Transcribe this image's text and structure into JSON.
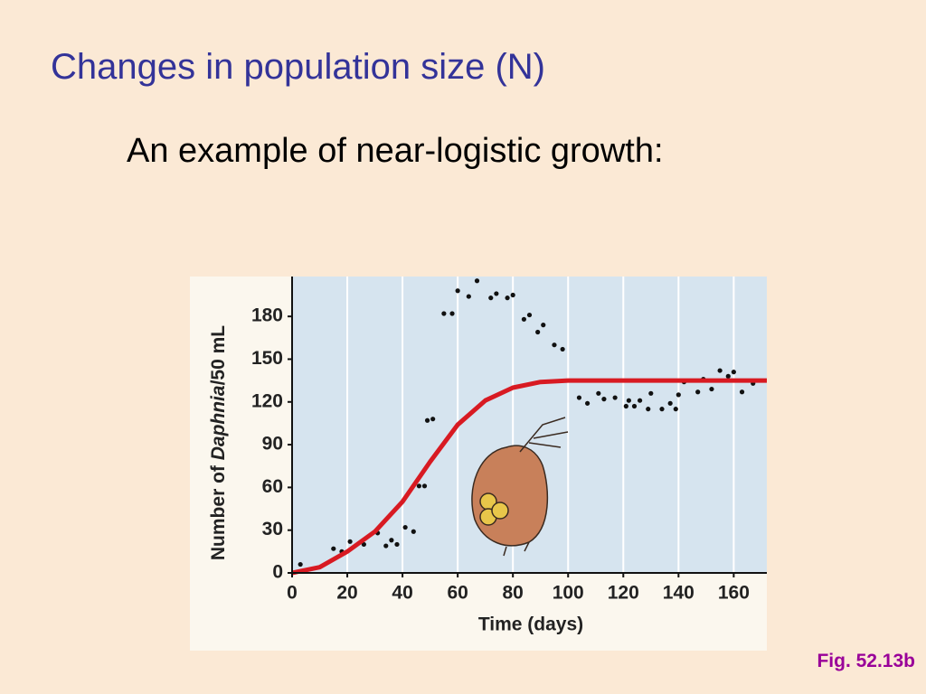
{
  "slide": {
    "title": "Changes in population size (N)",
    "subtitle": "An example of near-logistic growth:",
    "figure_label": "Fig. 52.13b"
  },
  "chart_data": {
    "type": "scatter",
    "xlabel": "Time (days)",
    "ylabel": {
      "before": "Number of ",
      "italic": "Daphnia",
      "after": "/50 mL"
    },
    "xlim": [
      0,
      172
    ],
    "ylim": [
      0,
      208
    ],
    "xticks": [
      0,
      20,
      40,
      60,
      80,
      100,
      120,
      140,
      160
    ],
    "yticks": [
      0,
      30,
      60,
      90,
      120,
      150,
      180
    ],
    "grid": "x",
    "series": [
      {
        "type": "scatter",
        "color": "#111111",
        "x": [
          3,
          15,
          18,
          21,
          26,
          31,
          34,
          36,
          38,
          41,
          44,
          46,
          48,
          49,
          51,
          55,
          58,
          60,
          64,
          67,
          72,
          74,
          78,
          80,
          84,
          86,
          89,
          91,
          95,
          98,
          104,
          107,
          111,
          113,
          117,
          121,
          122,
          124,
          126,
          129,
          130,
          134,
          137,
          139,
          140,
          142,
          147,
          149,
          152,
          155,
          158,
          160,
          163,
          167
        ],
        "values": [
          6,
          17,
          15,
          22,
          20,
          28,
          19,
          23,
          20,
          32,
          29,
          61,
          61,
          107,
          108,
          182,
          182,
          198,
          194,
          205,
          193,
          196,
          193,
          195,
          178,
          181,
          169,
          174,
          160,
          157,
          123,
          119,
          126,
          122,
          123,
          117,
          121,
          117,
          121,
          115,
          126,
          115,
          119,
          115,
          125,
          134,
          127,
          136,
          129,
          142,
          138,
          141,
          127,
          133
        ]
      },
      {
        "type": "line",
        "color": "#d81a22",
        "x": [
          0,
          10,
          20,
          30,
          40,
          50,
          60,
          70,
          80,
          90,
          100,
          110,
          120,
          130,
          140,
          150,
          160,
          170,
          172
        ],
        "values": [
          0,
          4,
          15,
          29,
          50,
          78,
          104,
          121,
          130,
          134,
          135,
          135,
          135,
          135,
          135,
          135,
          135,
          135,
          135
        ]
      }
    ]
  }
}
